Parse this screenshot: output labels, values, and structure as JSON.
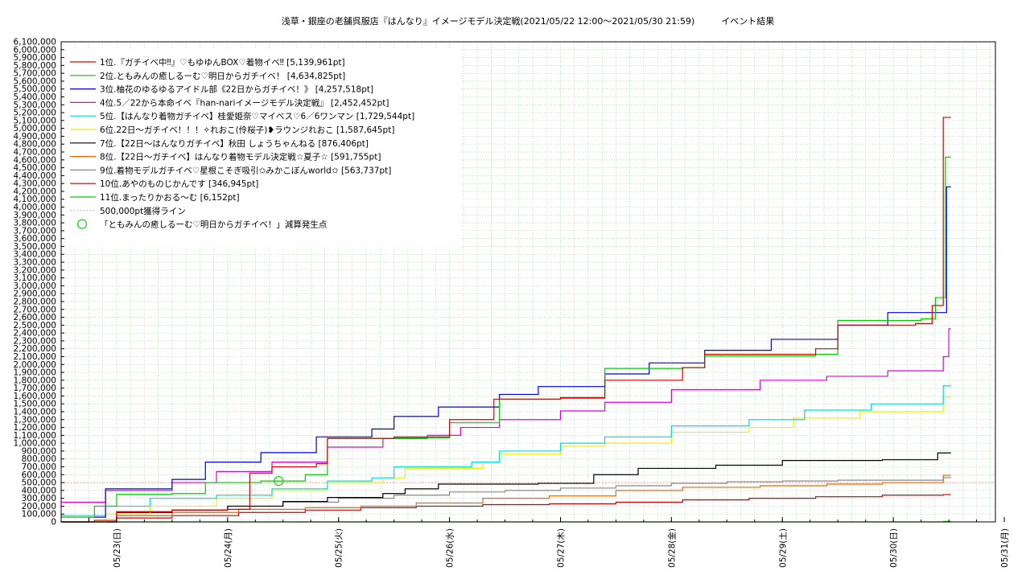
{
  "chart_data": {
    "type": "line",
    "title": "浅草・銀座の老舗呉服店『はんなり』イメージモデル決定戦(2021/05/22 12:00〜2021/05/30 21:59)　　　イベント結果",
    "xlabel": "",
    "ylabel": "",
    "x_tick_labels": [
      "05/23(日)",
      "05/24(月)",
      "05/25(火)",
      "05/26(水)",
      "05/27(木)",
      "05/28(金)",
      "05/29(土)",
      "05/30(日)",
      "05/31(月)"
    ],
    "xlim_days": [
      0,
      8.42
    ],
    "ylim": [
      0,
      6100000
    ],
    "y_tick_step": 100000,
    "grid": true,
    "legend_position": "top-left",
    "threshold": {
      "label": "500,000pt獲得ライン",
      "value": 500000,
      "color": "#ff9999"
    },
    "marker": {
      "label": "「ともみんの癒しるーむ♡明日からガチイベ！」減算発生点",
      "x": 1.96,
      "y": 520000,
      "color": "#00dd00"
    },
    "series": [
      {
        "name": "1位.『ガチイベ中‼』♡もゆゆんBOX♡着物イベ‼ [5,139,961pt]",
        "color": "#dd0000",
        "points": [
          [
            0,
            0
          ],
          [
            0.3,
            20000
          ],
          [
            0.5,
            130000
          ],
          [
            1.0,
            150000
          ],
          [
            1.5,
            160000
          ],
          [
            1.7,
            620000
          ],
          [
            1.9,
            700000
          ],
          [
            2.3,
            740000
          ],
          [
            2.4,
            1060000
          ],
          [
            3.0,
            1080000
          ],
          [
            3.5,
            1300000
          ],
          [
            3.9,
            1560000
          ],
          [
            4.5,
            1580000
          ],
          [
            4.9,
            1800000
          ],
          [
            5.6,
            1960000
          ],
          [
            5.8,
            2130000
          ],
          [
            6.8,
            2200000
          ],
          [
            7.0,
            2500000
          ],
          [
            7.7,
            2520000
          ],
          [
            7.85,
            2750000
          ],
          [
            7.95,
            5139961
          ]
        ]
      },
      {
        "name": "2位.ともみんの癒しるーむ♡明日からガチイベ！ [4,634,825pt]",
        "color": "#00cc00",
        "points": [
          [
            0,
            60000
          ],
          [
            0.3,
            200000
          ],
          [
            0.5,
            350000
          ],
          [
            1.0,
            360000
          ],
          [
            1.3,
            500000
          ],
          [
            1.8,
            520000
          ],
          [
            2.2,
            600000
          ],
          [
            2.4,
            1060000
          ],
          [
            3.0,
            1070000
          ],
          [
            3.5,
            1260000
          ],
          [
            3.95,
            1560000
          ],
          [
            4.5,
            1570000
          ],
          [
            4.9,
            1950000
          ],
          [
            5.6,
            1960000
          ],
          [
            5.8,
            2110000
          ],
          [
            6.8,
            2130000
          ],
          [
            7.0,
            2560000
          ],
          [
            7.75,
            2580000
          ],
          [
            7.88,
            2850000
          ],
          [
            7.97,
            4634825
          ]
        ]
      },
      {
        "name": "3位.柚花のゆるゆるアイドル部《22日からガチイベ！》 [4,257,518pt]",
        "color": "#0000dd",
        "points": [
          [
            0,
            0
          ],
          [
            0.25,
            60000
          ],
          [
            0.4,
            420000
          ],
          [
            1.0,
            540000
          ],
          [
            1.3,
            760000
          ],
          [
            1.8,
            880000
          ],
          [
            2.3,
            1080000
          ],
          [
            2.8,
            1180000
          ],
          [
            3.0,
            1340000
          ],
          [
            3.4,
            1460000
          ],
          [
            3.95,
            1620000
          ],
          [
            4.3,
            1720000
          ],
          [
            4.9,
            1880000
          ],
          [
            5.3,
            2020000
          ],
          [
            5.8,
            2180000
          ],
          [
            6.4,
            2320000
          ],
          [
            7.0,
            2500000
          ],
          [
            7.45,
            2660000
          ],
          [
            7.95,
            2660000
          ],
          [
            7.98,
            4257518
          ]
        ]
      },
      {
        "name": "4位.5／22から本命イベ『han-nariイメージモデル決定戦』 [2,452,452pt]",
        "color": "#dd00dd",
        "points": [
          [
            0,
            250000
          ],
          [
            0.4,
            400000
          ],
          [
            1.0,
            500000
          ],
          [
            1.4,
            640000
          ],
          [
            1.9,
            760000
          ],
          [
            2.4,
            950000
          ],
          [
            2.9,
            1060000
          ],
          [
            3.3,
            1100000
          ],
          [
            3.6,
            1200000
          ],
          [
            3.95,
            1300000
          ],
          [
            4.5,
            1410000
          ],
          [
            4.9,
            1520000
          ],
          [
            5.5,
            1680000
          ],
          [
            6.3,
            1800000
          ],
          [
            6.9,
            1850000
          ],
          [
            7.45,
            1920000
          ],
          [
            7.95,
            2100000
          ],
          [
            8.0,
            2452452
          ]
        ]
      },
      {
        "name": "5位.【はんなり着物ガチイベ】桂愛姫奈♡マイベス♡6／6ワンマン [1,729,544pt]",
        "color": "#00dddd",
        "points": [
          [
            0,
            80000
          ],
          [
            0.4,
            200000
          ],
          [
            0.8,
            300000
          ],
          [
            1.4,
            340000
          ],
          [
            1.9,
            420000
          ],
          [
            2.4,
            520000
          ],
          [
            2.8,
            560000
          ],
          [
            3.0,
            700000
          ],
          [
            3.7,
            760000
          ],
          [
            3.95,
            900000
          ],
          [
            4.5,
            1000000
          ],
          [
            4.9,
            1080000
          ],
          [
            5.5,
            1220000
          ],
          [
            6.2,
            1300000
          ],
          [
            6.7,
            1420000
          ],
          [
            7.3,
            1500000
          ],
          [
            7.95,
            1729544
          ]
        ]
      },
      {
        "name": "6位.22日〜ガチイベ！！！✧れおこ(伶桜子)❥ラウンジれおこ [1,587,645pt]",
        "color": "#eeee00",
        "points": [
          [
            0,
            0
          ],
          [
            0.4,
            100000
          ],
          [
            0.8,
            200000
          ],
          [
            1.4,
            300000
          ],
          [
            1.9,
            400000
          ],
          [
            2.4,
            500000
          ],
          [
            2.9,
            560000
          ],
          [
            3.1,
            680000
          ],
          [
            3.8,
            760000
          ],
          [
            3.95,
            860000
          ],
          [
            4.5,
            960000
          ],
          [
            4.9,
            1000000
          ],
          [
            5.5,
            1140000
          ],
          [
            6.2,
            1200000
          ],
          [
            6.6,
            1320000
          ],
          [
            7.2,
            1400000
          ],
          [
            7.95,
            1587645
          ]
        ]
      },
      {
        "name": "7位.【22日〜はんなりガチイベ】秋田 しょうちゃんねる [876,406pt]",
        "color": "#000000",
        "points": [
          [
            0,
            0
          ],
          [
            0.5,
            120000
          ],
          [
            1.0,
            150000
          ],
          [
            1.5,
            200000
          ],
          [
            2.0,
            260000
          ],
          [
            2.4,
            310000
          ],
          [
            2.9,
            360000
          ],
          [
            3.1,
            420000
          ],
          [
            3.4,
            480000
          ],
          [
            4.3,
            490000
          ],
          [
            4.8,
            600000
          ],
          [
            5.2,
            680000
          ],
          [
            5.9,
            720000
          ],
          [
            6.5,
            780000
          ],
          [
            7.4,
            790000
          ],
          [
            7.9,
            876406
          ]
        ]
      },
      {
        "name": "8位.【22日〜ガチイベ】はんなり着物モデル決定戦☆夏子☆ [591,755pt]",
        "color": "#ee6600",
        "points": [
          [
            0,
            0
          ],
          [
            0.5,
            80000
          ],
          [
            1.0,
            120000
          ],
          [
            1.6,
            160000
          ],
          [
            2.2,
            180000
          ],
          [
            2.7,
            200000
          ],
          [
            3.2,
            240000
          ],
          [
            3.8,
            300000
          ],
          [
            4.4,
            330000
          ],
          [
            5.0,
            400000
          ],
          [
            5.6,
            440000
          ],
          [
            6.3,
            460000
          ],
          [
            6.9,
            480000
          ],
          [
            7.4,
            500000
          ],
          [
            7.95,
            591755
          ]
        ]
      },
      {
        "name": "9位.着物モデルガチイベ♡星根こそぎ吸引✩みかこぼんworld✩ [563,737pt]",
        "color": "#888888",
        "points": [
          [
            0,
            0
          ],
          [
            0.5,
            80000
          ],
          [
            1.0,
            150000
          ],
          [
            1.5,
            200000
          ],
          [
            2.0,
            250000
          ],
          [
            2.5,
            300000
          ],
          [
            3.0,
            340000
          ],
          [
            3.5,
            380000
          ],
          [
            4.0,
            400000
          ],
          [
            4.5,
            430000
          ],
          [
            5.0,
            460000
          ],
          [
            5.5,
            490000
          ],
          [
            6.0,
            510000
          ],
          [
            6.5,
            520000
          ],
          [
            7.0,
            530000
          ],
          [
            7.95,
            563737
          ]
        ]
      },
      {
        "name": "10位.あやのものじかんです [346,945pt]",
        "color": "#cc0000",
        "points": [
          [
            0,
            0
          ],
          [
            0.5,
            50000
          ],
          [
            1.0,
            80000
          ],
          [
            1.6,
            120000
          ],
          [
            2.2,
            150000
          ],
          [
            2.7,
            180000
          ],
          [
            3.2,
            200000
          ],
          [
            3.8,
            220000
          ],
          [
            4.4,
            230000
          ],
          [
            5.0,
            250000
          ],
          [
            5.6,
            280000
          ],
          [
            6.2,
            300000
          ],
          [
            6.8,
            320000
          ],
          [
            7.4,
            340000
          ],
          [
            7.95,
            346945
          ]
        ]
      },
      {
        "name": "11位.まったりかおる〜む [6,152pt]",
        "color": "#00cc00",
        "points": [
          [
            0,
            0
          ],
          [
            7.95,
            6152
          ]
        ]
      }
    ]
  }
}
